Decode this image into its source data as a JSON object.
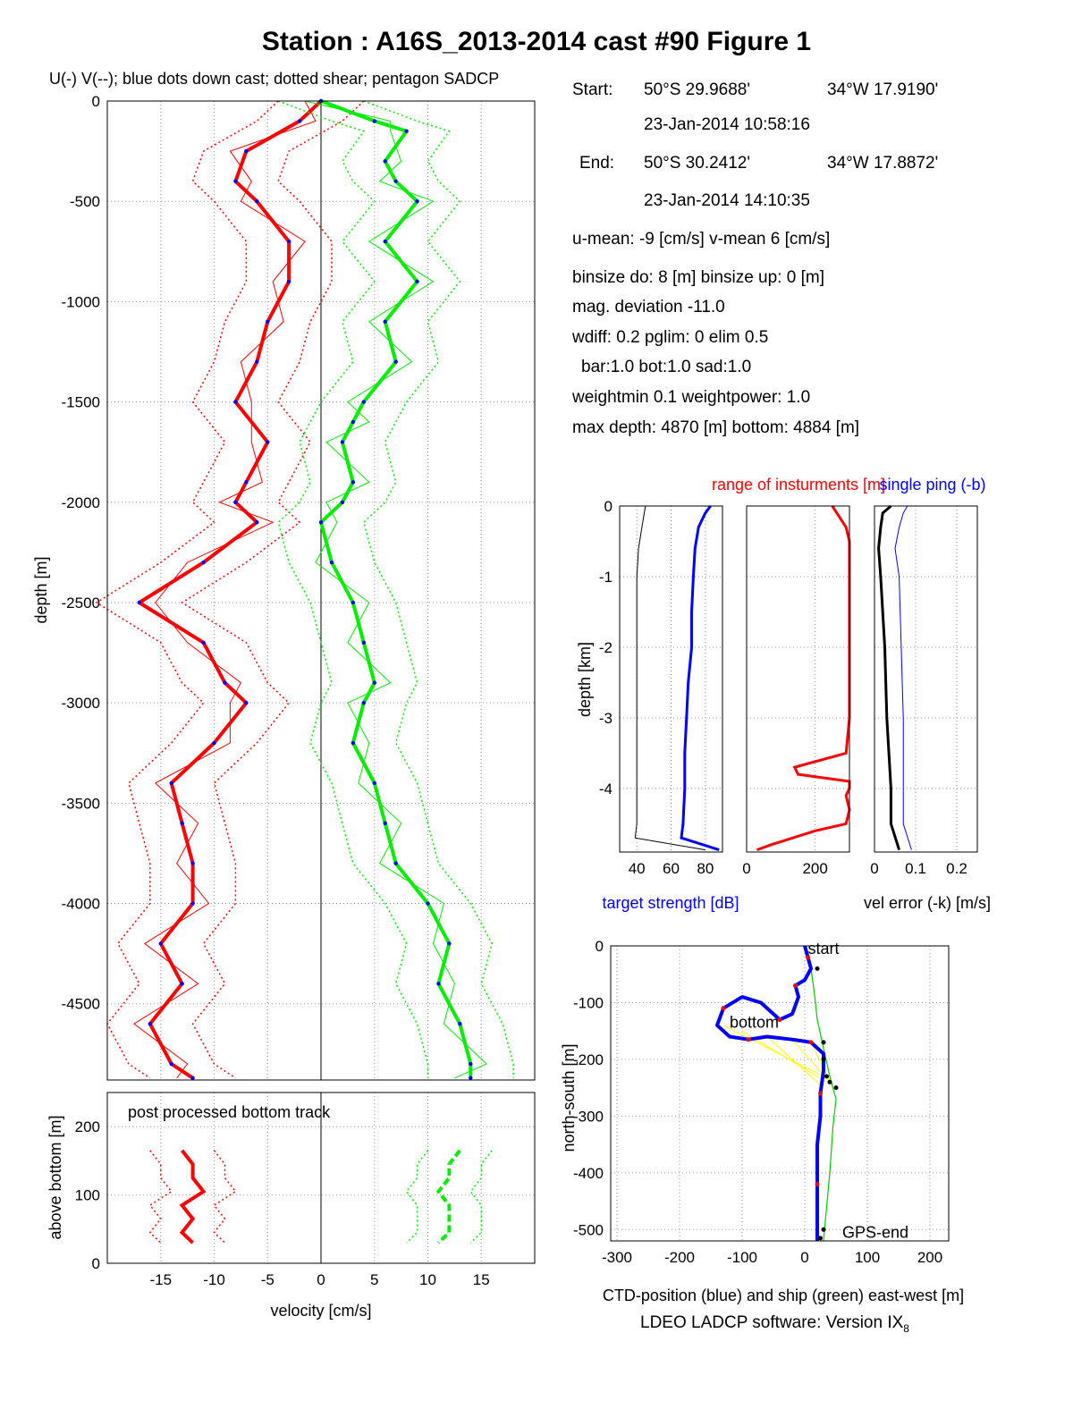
{
  "figure": {
    "title": "Station : A16S_2013-2014 cast #90  Figure 1",
    "subtitle": "U(-) V(--); blue dots down cast; dotted shear; pentagon SADCP",
    "footer": "LDEO LADCP software: Version IX",
    "footer_sub": "8"
  },
  "info": {
    "start_label": "Start:",
    "start_lat": "50°S 29.9688'",
    "start_lon": "34°W 17.9190'",
    "start_time": "23-Jan-2014 10:58:16",
    "end_label": "End:",
    "end_lat": "50°S 30.2412'",
    "end_lon": "34°W 17.8872'",
    "end_time": "23-Jan-2014 14:10:35",
    "means": "u-mean:  -9 [cm/s]    v-mean   6 [cm/s]",
    "binsize": "binsize do: 8 [m]  binsize up:  0 [m]",
    "magdev": "mag. deviation -11.0",
    "wdiff": "wdiff: 0.2  pglim: 0  elim 0.5",
    "bar": "bar:1.0 bot:1.0 sad:1.0",
    "weight": "weightmin 0.1  weightpower: 1.0",
    "maxdepth": "max depth: 4870 [m]   bottom: 4884 [m]"
  },
  "colors": {
    "u": "#ff0000",
    "v": "#00ee00",
    "downcast": "#0000ff",
    "ship": "#00cc00",
    "link": "#ffff00",
    "black": "#000000"
  },
  "chart_data": [
    {
      "id": "velocity_profile",
      "type": "line",
      "ylabel": "depth [m]",
      "xlim": [
        -20,
        20
      ],
      "ylim": [
        -4880,
        0
      ],
      "yticks": [
        0,
        -500,
        -1000,
        -1500,
        -2000,
        -2500,
        -3000,
        -3500,
        -4000,
        -4500
      ],
      "grid": true,
      "series": [
        {
          "name": "U",
          "color": "#ff0000",
          "depth": [
            0,
            -100,
            -250,
            -400,
            -500,
            -700,
            -900,
            -1100,
            -1300,
            -1500,
            -1700,
            -1900,
            -2000,
            -2100,
            -2300,
            -2500,
            -2700,
            -2900,
            -3000,
            -3200,
            -3400,
            -3600,
            -3800,
            -4000,
            -4200,
            -4400,
            -4600,
            -4800,
            -4870
          ],
          "values": [
            0,
            -2,
            -7,
            -8,
            -6,
            -3,
            -3,
            -5,
            -6,
            -8,
            -5,
            -7,
            -8,
            -6,
            -11,
            -17,
            -11,
            -9,
            -7,
            -10,
            -14,
            -13,
            -12,
            -12,
            -15,
            -13,
            -16,
            -14,
            -12
          ]
        },
        {
          "name": "V",
          "color": "#00ee00",
          "depth": [
            0,
            -100,
            -150,
            -300,
            -400,
            -500,
            -700,
            -900,
            -1100,
            -1300,
            -1500,
            -1600,
            -1700,
            -1900,
            -2000,
            -2100,
            -2300,
            -2500,
            -2700,
            -2900,
            -3000,
            -3200,
            -3400,
            -3600,
            -3800,
            -4000,
            -4200,
            -4400,
            -4600,
            -4800,
            -4870
          ],
          "values": [
            0,
            5,
            8,
            6,
            7,
            9,
            6,
            9,
            6,
            7,
            4,
            3,
            2,
            3,
            2,
            0,
            1,
            3,
            4,
            5,
            4,
            3,
            5,
            6,
            7,
            10,
            12,
            11,
            13,
            14,
            14
          ]
        }
      ]
    },
    {
      "id": "bottom_track",
      "type": "line",
      "xlabel": "velocity [cm/s]",
      "ylabel": "above bottom [m]",
      "annotation": "post processed bottom track",
      "xlim": [
        -20,
        20
      ],
      "ylim": [
        0,
        250
      ],
      "xticks": [
        -15,
        -10,
        -5,
        0,
        5,
        10,
        15
      ],
      "yticks": [
        0,
        100,
        200
      ],
      "grid": true,
      "series": [
        {
          "name": "U",
          "color": "#ff0000",
          "height": [
            165,
            145,
            125,
            105,
            85,
            65,
            45,
            30
          ],
          "values": [
            -13,
            -12,
            -12,
            -11,
            -13,
            -12,
            -13,
            -12
          ]
        },
        {
          "name": "V",
          "color": "#00ee00",
          "height": [
            165,
            145,
            125,
            105,
            85,
            65,
            45,
            30
          ],
          "values": [
            13,
            12,
            12,
            11,
            12,
            12,
            12,
            11
          ]
        }
      ]
    },
    {
      "id": "target_strength",
      "type": "line",
      "title": "target strength [dB]",
      "ylabel": "depth [km]",
      "xlim": [
        30,
        90
      ],
      "ylim": [
        -4.9,
        0
      ],
      "xticks": [
        40,
        60,
        80
      ],
      "yticks": [
        0,
        -1,
        -2,
        -3,
        -4
      ],
      "grid": true,
      "series": [
        {
          "name": "target strength",
          "color": "#0000ff",
          "depth": [
            0,
            -0.1,
            -0.3,
            -0.6,
            -1.0,
            -1.5,
            -2.0,
            -2.5,
            -3.0,
            -3.5,
            -4.0,
            -4.5,
            -4.7,
            -4.87
          ],
          "values": [
            83,
            80,
            76,
            74,
            73,
            72,
            72,
            70,
            69,
            68,
            68,
            67,
            66,
            88
          ]
        },
        {
          "name": "weak",
          "color": "#000000",
          "depth": [
            0,
            -0.3,
            -0.6,
            -1.0,
            -2.0,
            -3.0,
            -4.0,
            -4.5,
            -4.7,
            -4.87
          ],
          "values": [
            45,
            43,
            41,
            40,
            40,
            40,
            40,
            40,
            39,
            80
          ]
        }
      ]
    },
    {
      "id": "instrument_range",
      "type": "line",
      "title": "range of insturments [m]",
      "xlim": [
        0,
        300
      ],
      "ylim": [
        -4.9,
        0
      ],
      "xticks": [
        0,
        200
      ],
      "grid": true,
      "series": [
        {
          "name": "range",
          "color": "#ff0000",
          "depth": [
            0,
            -0.3,
            -0.5,
            -1.0,
            -1.5,
            -2.0,
            -2.5,
            -3.0,
            -3.5,
            -3.7,
            -3.8,
            -3.9,
            -4.0,
            -4.1,
            -4.3,
            -4.5,
            -4.6,
            -4.8,
            -4.87
          ],
          "values": [
            250,
            290,
            300,
            300,
            300,
            300,
            300,
            300,
            290,
            140,
            150,
            300,
            300,
            290,
            300,
            290,
            200,
            70,
            30
          ]
        }
      ]
    },
    {
      "id": "velocity_error",
      "type": "line",
      "title": "single ping (-b)",
      "xlabel": "vel error (-k) [m/s]",
      "xlim": [
        0,
        0.25
      ],
      "ylim": [
        -4.9,
        0
      ],
      "xticks": [
        0,
        0.1,
        0.2
      ],
      "grid": true,
      "series": [
        {
          "name": "vel error",
          "color": "#000000",
          "depth": [
            0,
            -0.1,
            -0.3,
            -0.6,
            -1.0,
            -2.0,
            -3.0,
            -4.0,
            -4.5,
            -4.87
          ],
          "values": [
            0.04,
            0.02,
            0.015,
            0.01,
            0.015,
            0.025,
            0.03,
            0.04,
            0.04,
            0.06
          ]
        },
        {
          "name": "single ping",
          "color": "#0000ff",
          "depth": [
            0,
            -0.1,
            -0.3,
            -0.6,
            -1.0,
            -2.0,
            -3.0,
            -4.0,
            -4.5,
            -4.87
          ],
          "values": [
            0.08,
            0.07,
            0.06,
            0.05,
            0.06,
            0.065,
            0.07,
            0.07,
            0.07,
            0.09
          ]
        }
      ]
    },
    {
      "id": "position",
      "type": "line",
      "xlabel": "CTD-position (blue) and ship (green) east-west [m]",
      "ylabel": "north-south [m]",
      "xlim": [
        -310,
        230
      ],
      "ylim": [
        -520,
        0
      ],
      "xticks": [
        -300,
        -200,
        -100,
        0,
        100,
        200
      ],
      "yticks": [
        0,
        -100,
        -200,
        -300,
        -400,
        -500
      ],
      "grid": true,
      "annotations": [
        {
          "text": "start",
          "x": 5,
          "y": -5
        },
        {
          "text": "bottom",
          "x": -120,
          "y": -135
        },
        {
          "text": "GPS-end",
          "x": 60,
          "y": -505
        }
      ],
      "series": [
        {
          "name": "CTD",
          "color": "#0000ff",
          "x": [
            0,
            5,
            10,
            0,
            -15,
            -10,
            -20,
            -40,
            -70,
            -100,
            -130,
            -140,
            -120,
            -90,
            -60,
            -20,
            10,
            30,
            30,
            25,
            25,
            20,
            20,
            20,
            20
          ],
          "y": [
            0,
            -20,
            -40,
            -60,
            -70,
            -90,
            -120,
            -130,
            -100,
            -90,
            -110,
            -140,
            -160,
            -165,
            -160,
            -165,
            -170,
            -190,
            -220,
            -260,
            -300,
            -350,
            -420,
            -480,
            -520
          ]
        },
        {
          "name": "ship",
          "color": "#00cc00",
          "x": [
            0,
            10,
            15,
            20,
            30,
            40,
            50,
            45,
            40,
            35,
            30
          ],
          "y": [
            0,
            -40,
            -80,
            -130,
            -180,
            -230,
            -270,
            -320,
            -400,
            -460,
            -520
          ]
        }
      ]
    }
  ]
}
